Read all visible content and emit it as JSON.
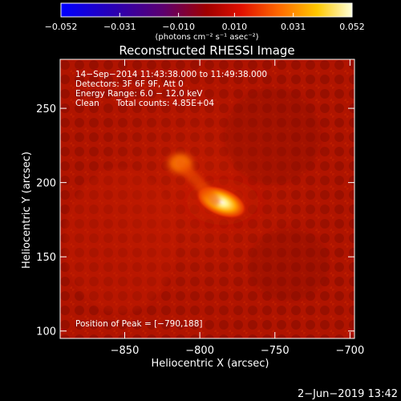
{
  "chart_data": {
    "type": "heatmap",
    "title": "Reconstructed RHESSI Image",
    "xlabel": "Heliocentric X (arcsec)",
    "ylabel": "Heliocentric Y (arcsec)",
    "xlim": [
      -893,
      -697
    ],
    "ylim": [
      95,
      283
    ],
    "x_ticks": [
      -850,
      -800,
      -750,
      -700
    ],
    "y_ticks": [
      100,
      150,
      200,
      250
    ],
    "x_tick_labels": [
      "−850",
      "−800",
      "−750",
      "−700"
    ],
    "y_tick_labels": [
      "100",
      "150",
      "200",
      "250"
    ],
    "grid": false,
    "colormap": "heat (blue-purple-red-orange-yellow-white)",
    "colorbar": {
      "range": [
        -0.052,
        0.052
      ],
      "ticks": [
        -0.052,
        -0.031,
        -0.01,
        0.01,
        0.031,
        0.052
      ],
      "tick_labels": [
        "−0.052",
        "−0.031",
        "−0.010",
        "0.010",
        "0.031",
        "0.052"
      ],
      "label": "(photons cm⁻² s⁻¹ asec⁻²)"
    },
    "annotations": {
      "time": "14−Sep−2014 11:43:38.000 to 11:49:38.000",
      "detectors": "Detectors: 3F 6F 9F, Att 0",
      "energy": "Energy Range: 6.0 − 12.0 keV",
      "clean": "Clean",
      "counts": "Total counts: 4.85E+04",
      "peak": "Position of Peak = [−790,188]"
    },
    "sources": [
      {
        "x": -790,
        "y": 188,
        "peak_value": 0.052
      },
      {
        "x": -813,
        "y": 213,
        "peak_value": 0.036
      }
    ],
    "footer_date": "2−Jun−2019 13:42"
  },
  "colors": {
    "background": "#000000",
    "foreground": "#ffffff"
  }
}
